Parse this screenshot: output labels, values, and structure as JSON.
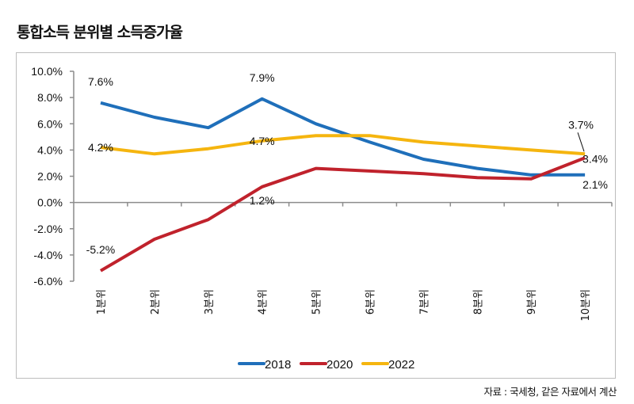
{
  "chart_data": {
    "type": "line",
    "title": "통합소득 분위별 소득증가율",
    "xlabel": "",
    "ylabel": "",
    "categories": [
      "1분위",
      "2분위",
      "3분위",
      "4분위",
      "5분위",
      "6분위",
      "7분위",
      "8분위",
      "9분위",
      "10분위"
    ],
    "ylim": [
      -6.0,
      10.0
    ],
    "yticks": [
      10.0,
      8.0,
      6.0,
      4.0,
      2.0,
      0.0,
      -2.0,
      -4.0,
      -6.0
    ],
    "ytick_labels": [
      "10.0%",
      "8.0%",
      "6.0%",
      "4.0%",
      "2.0%",
      "0.0%",
      "-2.0%",
      "-4.0%",
      "-6.0%"
    ],
    "grid": false,
    "legend_position": "bottom",
    "series": [
      {
        "name": "2018",
        "color": "#1f6fba",
        "values": [
          7.6,
          6.5,
          5.7,
          7.9,
          6.0,
          4.6,
          3.3,
          2.6,
          2.1,
          2.1
        ],
        "labels": [
          {
            "index": 0,
            "text": "7.6%",
            "position": "above"
          },
          {
            "index": 3,
            "text": "7.9%",
            "position": "above"
          },
          {
            "index": 9,
            "text": "2.1%",
            "position": "below"
          }
        ]
      },
      {
        "name": "2020",
        "color": "#c0222c",
        "values": [
          -5.2,
          -2.8,
          -1.3,
          1.2,
          2.6,
          2.4,
          2.2,
          1.9,
          1.8,
          3.4
        ],
        "labels": [
          {
            "index": 0,
            "text": "-5.2%",
            "position": "above"
          },
          {
            "index": 3,
            "text": "1.2%",
            "position": "below"
          },
          {
            "index": 9,
            "text": "3.4%",
            "position": "right"
          }
        ]
      },
      {
        "name": "2022",
        "color": "#f5b50f",
        "values": [
          4.2,
          3.7,
          4.1,
          4.7,
          5.1,
          5.1,
          4.6,
          4.3,
          4.0,
          3.7
        ],
        "labels": [
          {
            "index": 0,
            "text": "4.2%",
            "position": "center"
          },
          {
            "index": 3,
            "text": "4.7%",
            "position": "center"
          },
          {
            "index": 9,
            "text": "3.7%",
            "position": "above-leader"
          }
        ]
      }
    ]
  },
  "source_note": "자료 : 국세청, 같은 자료에서 계산"
}
